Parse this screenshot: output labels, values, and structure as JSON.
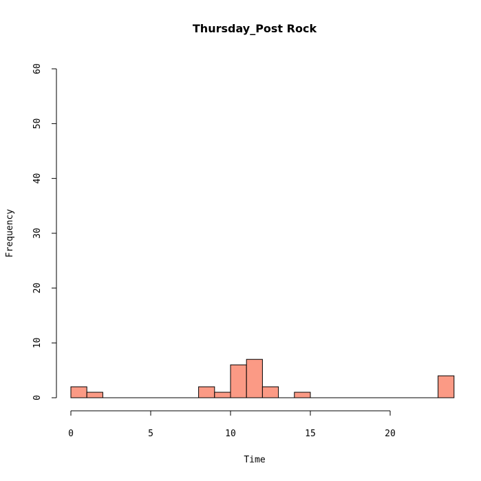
{
  "chart_data": {
    "type": "bar",
    "subtype": "histogram",
    "title": "Thursday_Post Rock",
    "xlabel": "Time",
    "ylabel": "Frequency",
    "xlim": [
      0,
      24
    ],
    "ylim": [
      0,
      60
    ],
    "x_ticks": [
      0,
      5,
      10,
      15,
      20
    ],
    "y_ticks": [
      0,
      10,
      20,
      30,
      40,
      50,
      60
    ],
    "bin_width": 1,
    "bins": [
      {
        "start": 0,
        "end": 1,
        "count": 2
      },
      {
        "start": 1,
        "end": 2,
        "count": 1
      },
      {
        "start": 2,
        "end": 3,
        "count": 0
      },
      {
        "start": 3,
        "end": 4,
        "count": 0
      },
      {
        "start": 4,
        "end": 5,
        "count": 0
      },
      {
        "start": 5,
        "end": 6,
        "count": 0
      },
      {
        "start": 6,
        "end": 7,
        "count": 0
      },
      {
        "start": 7,
        "end": 8,
        "count": 0
      },
      {
        "start": 8,
        "end": 9,
        "count": 2
      },
      {
        "start": 9,
        "end": 10,
        "count": 1
      },
      {
        "start": 10,
        "end": 11,
        "count": 6
      },
      {
        "start": 11,
        "end": 12,
        "count": 7
      },
      {
        "start": 12,
        "end": 13,
        "count": 2
      },
      {
        "start": 13,
        "end": 14,
        "count": 0
      },
      {
        "start": 14,
        "end": 15,
        "count": 1
      },
      {
        "start": 15,
        "end": 16,
        "count": 0
      },
      {
        "start": 16,
        "end": 17,
        "count": 0
      },
      {
        "start": 17,
        "end": 18,
        "count": 0
      },
      {
        "start": 18,
        "end": 19,
        "count": 0
      },
      {
        "start": 19,
        "end": 20,
        "count": 0
      },
      {
        "start": 20,
        "end": 21,
        "count": 0
      },
      {
        "start": 21,
        "end": 22,
        "count": 0
      },
      {
        "start": 22,
        "end": 23,
        "count": 0
      },
      {
        "start": 23,
        "end": 24,
        "count": 4
      }
    ],
    "bar_color": "#fb9a85",
    "grid": false,
    "legend": "none"
  }
}
